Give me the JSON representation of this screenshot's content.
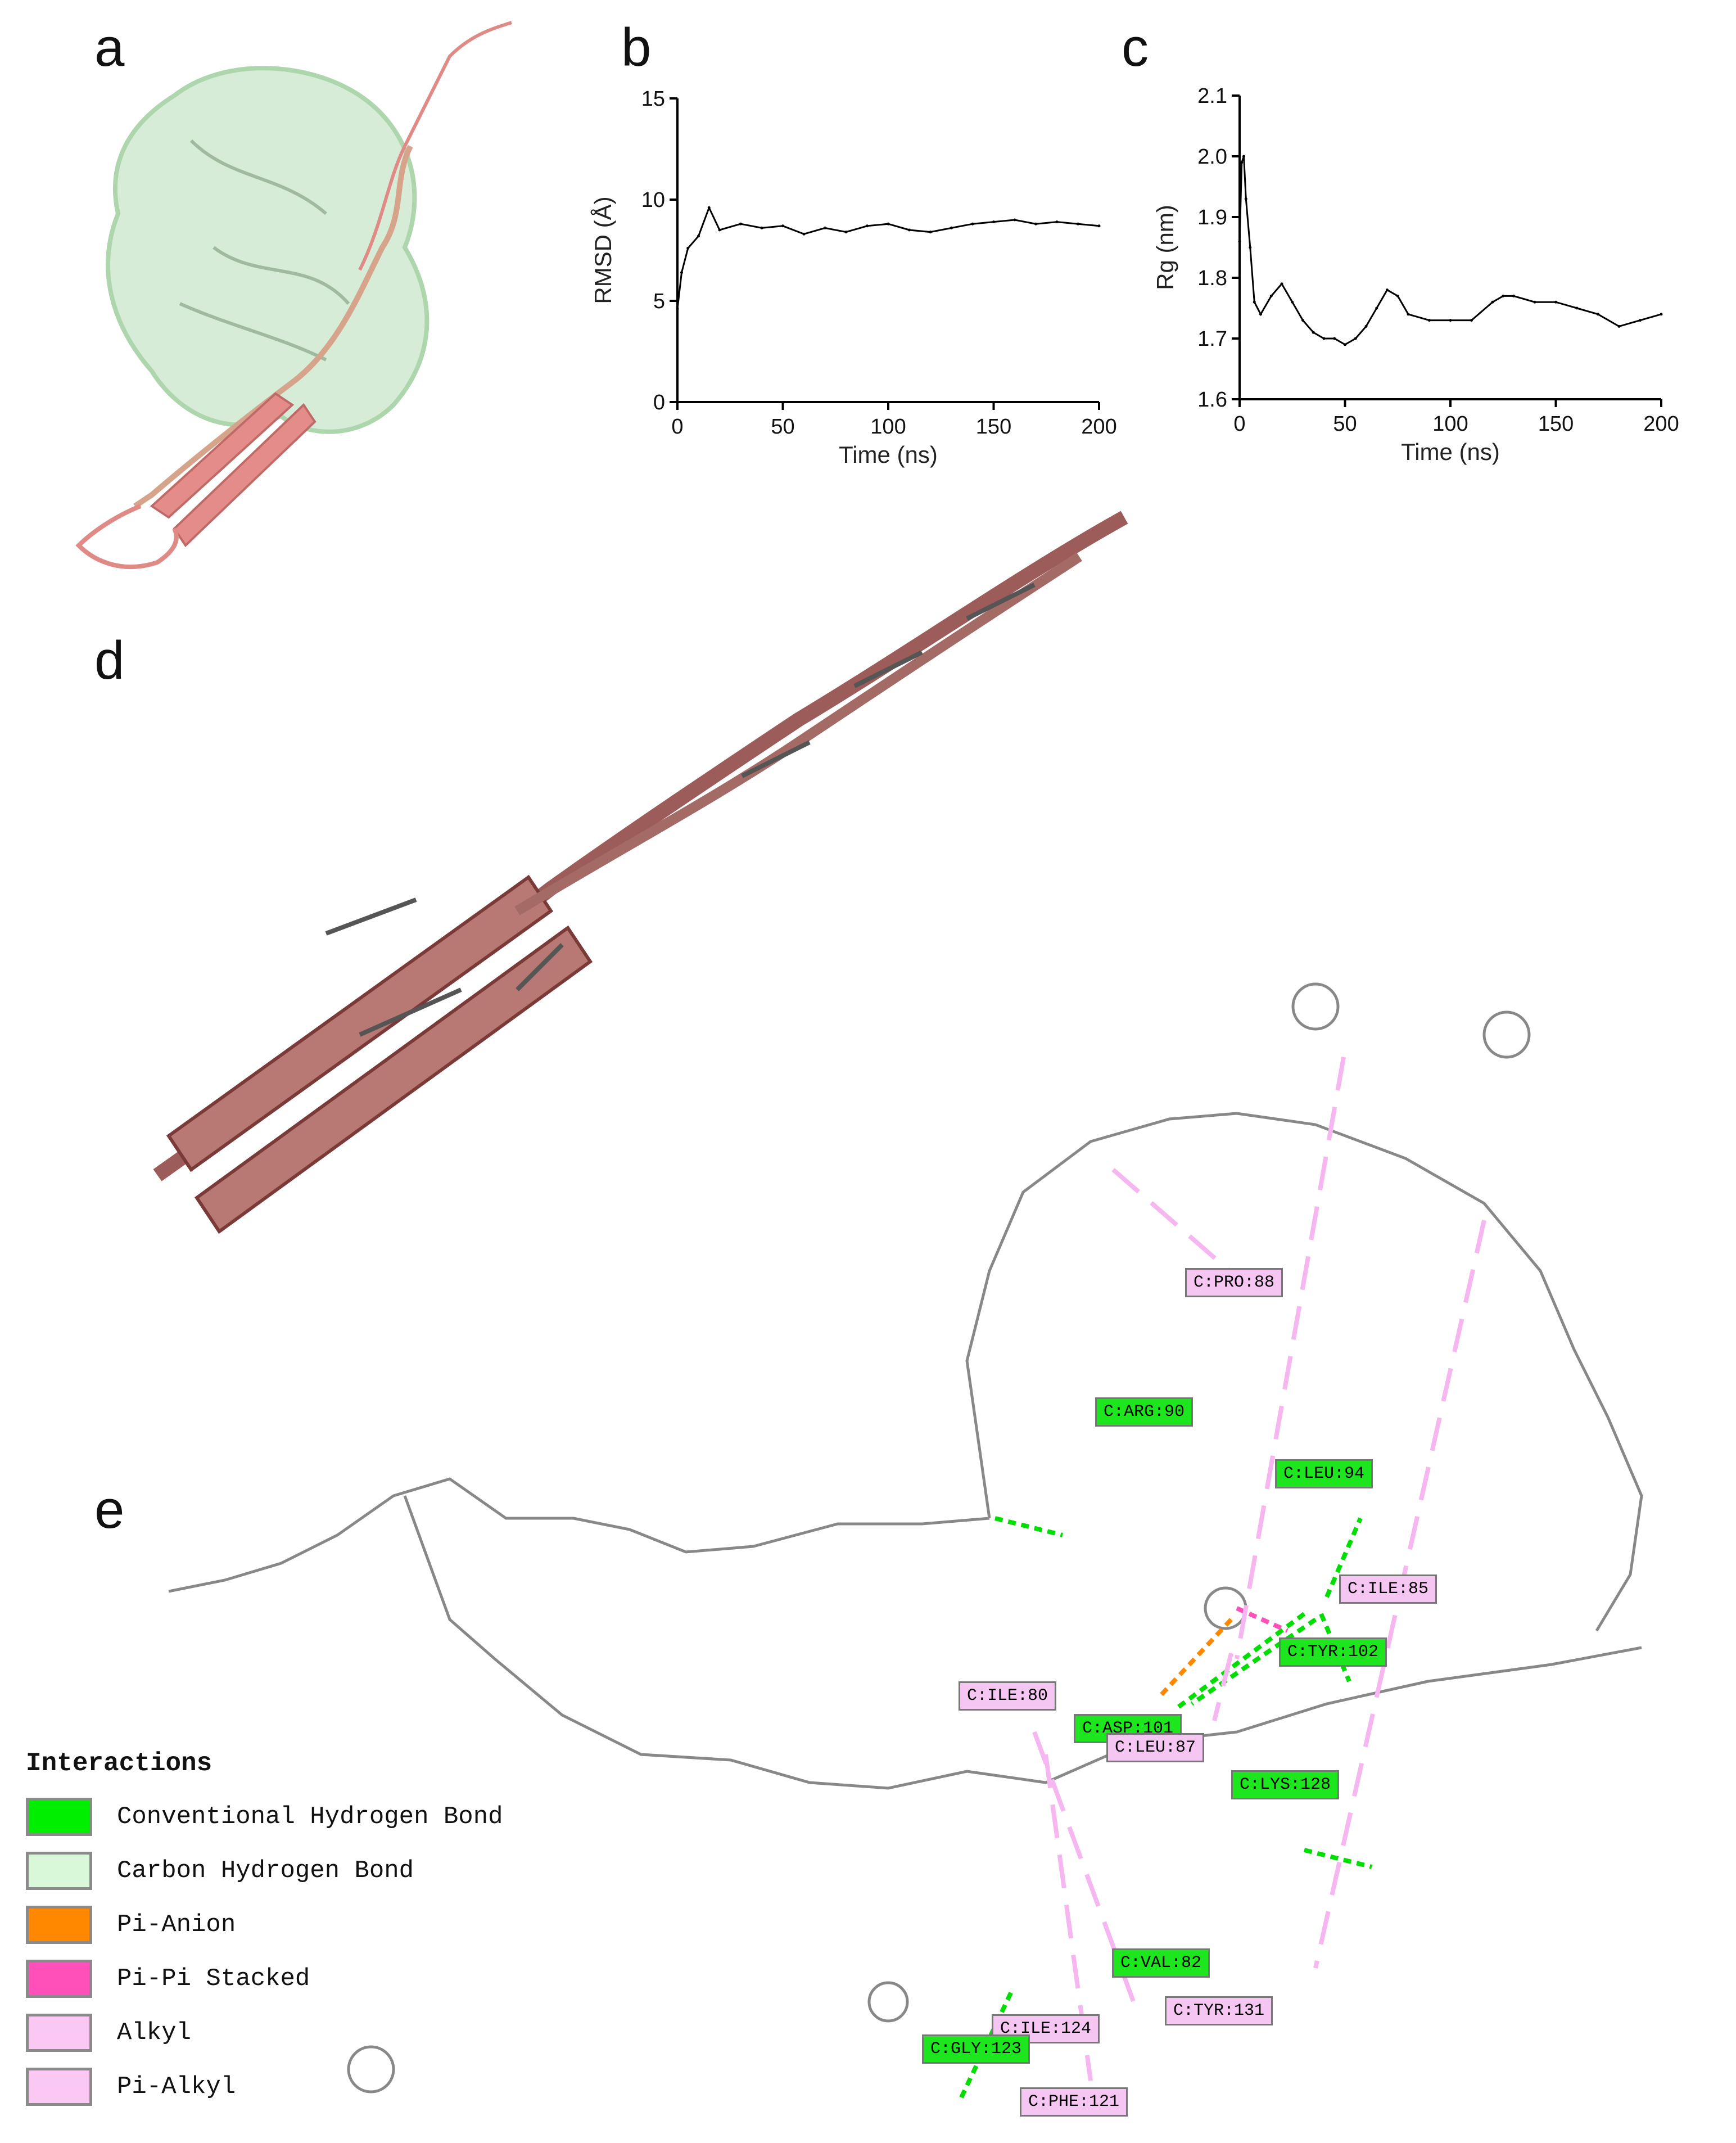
{
  "panels": {
    "a": "a",
    "b": "b",
    "c": "c",
    "d": "d",
    "e": "e"
  },
  "chart_data": [
    {
      "type": "line",
      "ylabel": "RMSD (Å)",
      "xlabel": "Time (ns)",
      "xlim": [
        0,
        200
      ],
      "ylim": [
        0,
        15
      ],
      "xticks": [
        0,
        50,
        100,
        150,
        200
      ],
      "yticks": [
        0,
        5,
        10,
        15
      ],
      "series": [
        {
          "x": [
            0,
            2,
            5,
            10,
            15,
            20,
            30,
            40,
            50,
            60,
            70,
            80,
            90,
            100,
            110,
            120,
            130,
            140,
            150,
            160,
            170,
            180,
            190,
            200
          ],
          "y": [
            4.6,
            6.4,
            7.6,
            8.2,
            9.6,
            8.5,
            8.8,
            8.6,
            8.7,
            8.3,
            8.6,
            8.4,
            8.7,
            8.8,
            8.5,
            8.4,
            8.6,
            8.8,
            8.9,
            9.0,
            8.8,
            8.9,
            8.8,
            8.7
          ]
        }
      ]
    },
    {
      "type": "line",
      "ylabel": "Rg (nm)",
      "xlabel": "Time (ns)",
      "xlim": [
        0,
        200
      ],
      "ylim": [
        1.6,
        2.1
      ],
      "xticks": [
        0,
        50,
        100,
        150,
        200
      ],
      "yticks": [
        1.6,
        1.7,
        1.8,
        1.9,
        2.0,
        2.1
      ],
      "series": [
        {
          "x": [
            0,
            1,
            2,
            3,
            5,
            7,
            10,
            15,
            20,
            25,
            30,
            35,
            40,
            45,
            50,
            55,
            60,
            65,
            70,
            75,
            80,
            90,
            100,
            110,
            120,
            125,
            130,
            140,
            150,
            160,
            170,
            180,
            190,
            200
          ],
          "y": [
            1.86,
            1.99,
            2.0,
            1.93,
            1.85,
            1.76,
            1.74,
            1.77,
            1.79,
            1.76,
            1.73,
            1.71,
            1.7,
            1.7,
            1.69,
            1.7,
            1.72,
            1.75,
            1.78,
            1.77,
            1.74,
            1.73,
            1.73,
            1.73,
            1.76,
            1.77,
            1.77,
            1.76,
            1.76,
            1.75,
            1.74,
            1.72,
            1.73,
            1.74
          ]
        }
      ]
    }
  ],
  "residues": {
    "pro88": "C:PRO:88",
    "arg90": "C:ARG:90",
    "leu94": "C:LEU:94",
    "ile85": "C:ILE:85",
    "tyr102": "C:TYR:102",
    "ile80": "C:ILE:80",
    "asp101": "C:ASP:101",
    "leu87": "C:LEU:87",
    "lys128": "C:LYS:128",
    "val82": "C:VAL:82",
    "tyr131": "C:TYR:131",
    "ile124": "C:ILE:124",
    "gly123": "C:GLY:123",
    "phe121": "C:PHE:121"
  },
  "legend": {
    "title": "Interactions",
    "items": [
      {
        "label": "Conventional Hydrogen Bond",
        "color": "#00ee00"
      },
      {
        "label": "Carbon Hydrogen Bond",
        "color": "#d9f7d9"
      },
      {
        "label": "Pi-Anion",
        "color": "#ff8800"
      },
      {
        "label": "Pi-Pi Stacked",
        "color": "#ff4fb8"
      },
      {
        "label": "Alkyl",
        "color": "#fbc8f4"
      },
      {
        "label": "Pi-Alkyl",
        "color": "#fbc8f4"
      }
    ]
  }
}
